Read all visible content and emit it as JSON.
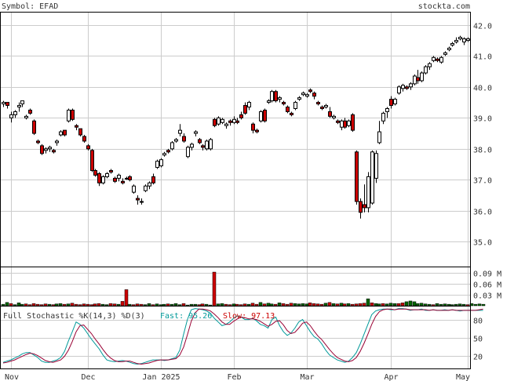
{
  "header": {
    "symbol_label": "Symbol: EFAD",
    "site": "stockta.com"
  },
  "indicator": {
    "label": "Full Stochastic %K(14,3) %D(3)",
    "fast_label": "Fast: 95.26",
    "slow_label": "Slow: 97.13"
  },
  "colors": {
    "up_fill": "#ffffff",
    "down_fill": "#cc0000",
    "up_volume": "#006600",
    "down_volume": "#cc0000",
    "k_line": "#009999",
    "d_line": "#990033",
    "accent_text": "#009999",
    "slow_text": "#cc0000"
  },
  "chart_data": [
    {
      "type": "candlestick",
      "ylim": [
        34.2,
        42.4
      ],
      "y_ticks": [
        "42.0",
        "41.0",
        "40.0",
        "39.0",
        "38.0",
        "37.0",
        "36.0",
        "35.0"
      ],
      "x_labels": [
        "Nov",
        "Dec",
        "Jan 2025",
        "Feb",
        "Mar",
        "Apr",
        "May"
      ],
      "x_label_index": [
        2,
        22,
        41,
        60,
        79,
        101,
        121
      ],
      "ohlc": [
        [
          39.45,
          39.55,
          39.35,
          39.5
        ],
        [
          39.5,
          39.5,
          39.3,
          39.4
        ],
        [
          39.0,
          39.2,
          38.85,
          39.1
        ],
        [
          39.1,
          39.25,
          39.0,
          39.2
        ],
        [
          39.35,
          39.5,
          39.2,
          39.4
        ],
        [
          39.45,
          39.55,
          39.35,
          39.55
        ],
        [
          39.0,
          39.1,
          38.95,
          39.05
        ],
        [
          39.25,
          39.3,
          39.1,
          39.15
        ],
        [
          38.9,
          38.95,
          38.45,
          38.5
        ],
        [
          38.25,
          38.3,
          38.15,
          38.2
        ],
        [
          38.1,
          38.15,
          37.8,
          37.85
        ],
        [
          37.95,
          38.05,
          37.85,
          38.0
        ],
        [
          38.0,
          38.1,
          37.9,
          38.05
        ],
        [
          37.95,
          38.0,
          37.85,
          37.9
        ],
        [
          38.2,
          38.3,
          38.1,
          38.25
        ],
        [
          38.45,
          38.6,
          38.4,
          38.55
        ],
        [
          38.6,
          38.6,
          38.4,
          38.45
        ],
        [
          38.9,
          39.3,
          38.85,
          39.25
        ],
        [
          39.25,
          39.3,
          38.9,
          38.95
        ],
        [
          38.75,
          38.8,
          38.6,
          38.7
        ],
        [
          38.65,
          38.65,
          38.4,
          38.45
        ],
        [
          38.4,
          38.45,
          38.2,
          38.25
        ],
        [
          38.1,
          38.15,
          37.95,
          38.0
        ],
        [
          37.95,
          38.0,
          37.25,
          37.3
        ],
        [
          37.3,
          37.35,
          37.1,
          37.15
        ],
        [
          37.2,
          37.25,
          36.8,
          36.9
        ],
        [
          36.9,
          37.15,
          36.85,
          37.1
        ],
        [
          37.1,
          37.25,
          37.05,
          37.2
        ],
        [
          37.3,
          37.35,
          37.2,
          37.25
        ],
        [
          37.05,
          37.1,
          36.9,
          36.95
        ],
        [
          37.05,
          37.2,
          36.95,
          37.15
        ],
        [
          36.95,
          37.05,
          36.85,
          36.9
        ],
        [
          37.05,
          37.1,
          37.0,
          37.05
        ],
        [
          37.1,
          37.15,
          36.95,
          37.0
        ],
        [
          36.6,
          36.85,
          36.55,
          36.8
        ],
        [
          36.4,
          36.5,
          36.2,
          36.35
        ],
        [
          36.3,
          36.4,
          36.2,
          36.3
        ],
        [
          36.65,
          36.85,
          36.6,
          36.8
        ],
        [
          36.8,
          36.95,
          36.7,
          36.9
        ],
        [
          37.1,
          37.2,
          36.85,
          36.9
        ],
        [
          37.4,
          37.65,
          37.35,
          37.6
        ],
        [
          37.45,
          37.7,
          37.4,
          37.65
        ],
        [
          37.8,
          37.9,
          37.75,
          37.85
        ],
        [
          37.95,
          38.0,
          37.85,
          37.9
        ],
        [
          38.0,
          38.25,
          37.95,
          38.2
        ],
        [
          38.25,
          38.35,
          38.2,
          38.3
        ],
        [
          38.5,
          38.8,
          38.4,
          38.6
        ],
        [
          38.4,
          38.5,
          38.2,
          38.25
        ],
        [
          37.75,
          38.1,
          37.7,
          38.05
        ],
        [
          38.05,
          38.2,
          37.95,
          38.15
        ],
        [
          38.5,
          38.6,
          38.4,
          38.55
        ],
        [
          38.3,
          38.35,
          38.15,
          38.2
        ],
        [
          38.1,
          38.15,
          37.95,
          38.05
        ],
        [
          38.0,
          38.3,
          37.95,
          38.25
        ],
        [
          38.0,
          38.35,
          37.95,
          38.3
        ],
        [
          38.95,
          39.0,
          38.7,
          38.75
        ],
        [
          38.8,
          39.05,
          38.75,
          39.0
        ],
        [
          38.85,
          39.0,
          38.8,
          38.95
        ],
        [
          38.75,
          38.85,
          38.65,
          38.8
        ],
        [
          38.9,
          38.95,
          38.75,
          38.85
        ],
        [
          38.85,
          39.05,
          38.8,
          38.95
        ],
        [
          38.9,
          39.0,
          38.8,
          38.85
        ],
        [
          39.1,
          39.2,
          38.95,
          39.0
        ],
        [
          39.4,
          39.5,
          39.1,
          39.15
        ],
        [
          39.35,
          39.55,
          39.25,
          39.5
        ],
        [
          38.8,
          38.85,
          38.5,
          38.6
        ],
        [
          38.6,
          38.65,
          38.5,
          38.55
        ],
        [
          38.9,
          39.25,
          38.85,
          39.2
        ],
        [
          39.25,
          39.3,
          38.85,
          38.9
        ],
        [
          39.5,
          39.6,
          39.45,
          39.55
        ],
        [
          39.55,
          39.9,
          39.5,
          39.85
        ],
        [
          39.85,
          39.9,
          39.5,
          39.55
        ],
        [
          39.6,
          39.7,
          39.5,
          39.65
        ],
        [
          39.5,
          39.55,
          39.4,
          39.45
        ],
        [
          39.35,
          39.4,
          39.15,
          39.2
        ],
        [
          39.15,
          39.2,
          39.05,
          39.1
        ],
        [
          39.3,
          39.55,
          39.25,
          39.5
        ],
        [
          39.6,
          39.7,
          39.55,
          39.65
        ],
        [
          39.75,
          39.85,
          39.7,
          39.8
        ],
        [
          39.7,
          39.8,
          39.65,
          39.75
        ],
        [
          39.9,
          39.95,
          39.8,
          39.85
        ],
        [
          39.8,
          39.85,
          39.6,
          39.7
        ],
        [
          39.5,
          39.55,
          39.4,
          39.45
        ],
        [
          39.35,
          39.4,
          39.25,
          39.3
        ],
        [
          39.35,
          39.45,
          39.3,
          39.4
        ],
        [
          39.2,
          39.35,
          39.0,
          39.05
        ],
        [
          39.0,
          39.1,
          38.95,
          39.05
        ],
        [
          38.9,
          38.95,
          38.8,
          38.85
        ],
        [
          38.7,
          38.95,
          38.6,
          38.9
        ],
        [
          38.9,
          39.0,
          38.65,
          38.7
        ],
        [
          38.75,
          38.95,
          38.7,
          38.9
        ],
        [
          39.1,
          39.15,
          38.55,
          38.6
        ],
        [
          37.9,
          37.95,
          36.2,
          36.3
        ],
        [
          36.3,
          36.4,
          35.75,
          35.95
        ],
        [
          36.2,
          36.85,
          35.95,
          36.1
        ],
        [
          36.1,
          37.25,
          35.95,
          37.1
        ],
        [
          36.25,
          37.95,
          36.2,
          37.9
        ],
        [
          37.05,
          37.95,
          36.9,
          37.85
        ],
        [
          38.2,
          38.9,
          38.15,
          38.55
        ],
        [
          38.9,
          39.2,
          38.8,
          39.15
        ],
        [
          39.2,
          39.35,
          39.0,
          39.3
        ],
        [
          39.6,
          39.7,
          39.3,
          39.4
        ],
        [
          39.45,
          39.65,
          39.4,
          39.6
        ],
        [
          39.8,
          40.05,
          39.75,
          40.0
        ],
        [
          39.95,
          40.1,
          39.85,
          40.05
        ],
        [
          40.0,
          40.05,
          39.9,
          39.95
        ],
        [
          40.0,
          40.15,
          39.9,
          40.1
        ],
        [
          40.1,
          40.4,
          40.05,
          40.35
        ],
        [
          40.3,
          40.55,
          40.1,
          40.2
        ],
        [
          40.2,
          40.5,
          40.15,
          40.45
        ],
        [
          40.45,
          40.7,
          40.4,
          40.65
        ],
        [
          40.65,
          40.8,
          40.55,
          40.75
        ],
        [
          40.85,
          41.0,
          40.8,
          40.95
        ],
        [
          40.9,
          40.95,
          40.8,
          40.85
        ],
        [
          40.8,
          41.0,
          40.75,
          40.95
        ],
        [
          41.05,
          41.15,
          41.0,
          41.1
        ],
        [
          41.2,
          41.3,
          41.15,
          41.25
        ],
        [
          41.35,
          41.45,
          41.3,
          41.4
        ],
        [
          41.45,
          41.6,
          41.4,
          41.5
        ],
        [
          41.55,
          41.65,
          41.5,
          41.6
        ],
        [
          41.45,
          41.6,
          41.35,
          41.55
        ],
        [
          41.5,
          41.6,
          41.45,
          41.55
        ]
      ]
    },
    {
      "type": "bar",
      "name": "volume",
      "ylim": [
        0,
        0.105
      ],
      "y_ticks": [
        "0.09 M",
        "0.06 M",
        "0.03 M"
      ],
      "values": [
        0.004,
        0.009,
        0.006,
        0.003,
        0.008,
        0.004,
        0.005,
        0.003,
        0.006,
        0.004,
        0.003,
        0.005,
        0.004,
        0.003,
        0.005,
        0.006,
        0.004,
        0.005,
        0.007,
        0.004,
        0.003,
        0.005,
        0.004,
        0.003,
        0.005,
        0.006,
        0.004,
        0.003,
        0.006,
        0.005,
        0.004,
        0.012,
        0.044,
        0.004,
        0.003,
        0.005,
        0.004,
        0.003,
        0.006,
        0.003,
        0.005,
        0.003,
        0.004,
        0.005,
        0.004,
        0.006,
        0.003,
        0.006,
        0.002,
        0.004,
        0.004,
        0.003,
        0.005,
        0.004,
        0.002,
        0.092,
        0.005,
        0.006,
        0.004,
        0.003,
        0.005,
        0.004,
        0.003,
        0.005,
        0.004,
        0.007,
        0.004,
        0.009,
        0.005,
        0.007,
        0.005,
        0.004,
        0.008,
        0.006,
        0.004,
        0.007,
        0.006,
        0.005,
        0.006,
        0.005,
        0.008,
        0.006,
        0.005,
        0.004,
        0.007,
        0.009,
        0.006,
        0.005,
        0.007,
        0.005,
        0.006,
        0.004,
        0.005,
        0.006,
        0.007,
        0.019,
        0.008,
        0.006,
        0.005,
        0.006,
        0.005,
        0.007,
        0.006,
        0.006,
        0.008,
        0.011,
        0.013,
        0.011,
        0.006,
        0.007,
        0.005,
        0.004,
        0.003,
        0.006,
        0.004,
        0.005,
        0.004,
        0.003,
        0.004,
        0.005,
        0.004,
        0.003,
        0.006,
        0.004,
        0.005,
        0.004
      ],
      "dir": [
        1,
        1,
        0,
        1,
        1,
        1,
        0,
        0,
        0,
        0,
        0,
        0,
        1,
        0,
        1,
        1,
        0,
        1,
        0,
        0,
        0,
        0,
        0,
        0,
        0,
        0,
        1,
        1,
        0,
        0,
        1,
        0,
        0,
        1,
        0,
        0,
        0,
        1,
        1,
        0,
        1,
        1,
        1,
        0,
        1,
        1,
        1,
        0,
        1,
        1,
        1,
        0,
        0,
        1,
        1,
        0,
        1,
        1,
        0,
        0,
        1,
        0,
        0,
        0,
        1,
        0,
        0,
        1,
        0,
        1,
        1,
        0,
        1,
        0,
        0,
        0,
        1,
        1,
        1,
        1,
        0,
        0,
        0,
        0,
        1,
        0,
        1,
        0,
        1,
        0,
        1,
        0,
        0,
        0,
        0,
        1,
        0,
        1,
        1,
        0,
        1,
        1,
        1,
        0,
        0,
        1,
        1,
        1,
        1,
        1,
        1,
        1,
        0,
        1,
        1,
        1,
        1,
        1,
        1,
        1,
        1,
        0,
        1,
        1,
        1,
        1
      ]
    },
    {
      "type": "line",
      "name": "stochastic",
      "ylim": [
        0,
        100
      ],
      "y_ticks": [
        "80",
        "50",
        "20"
      ],
      "y_tick_values": [
        80,
        50,
        20
      ],
      "series": [
        {
          "values": [
            10,
            12,
            14,
            17,
            20,
            24,
            26,
            26,
            22,
            18,
            12,
            10,
            10,
            12,
            14,
            18,
            28,
            45,
            60,
            76,
            72,
            66,
            57,
            48,
            40,
            32,
            22,
            14,
            12,
            11,
            12,
            13,
            12,
            10,
            8,
            7,
            8,
            10,
            12,
            14,
            14,
            14,
            13,
            14,
            16,
            18,
            30,
            56,
            80,
            96,
            98,
            97,
            96,
            94,
            90,
            82,
            76,
            70,
            72,
            76,
            82,
            86,
            84,
            80,
            80,
            82,
            78,
            72,
            70,
            66,
            80,
            84,
            70,
            60,
            54,
            58,
            66,
            76,
            80,
            70,
            60,
            52,
            48,
            40,
            30,
            22,
            18,
            14,
            12,
            10,
            12,
            18,
            26,
            40,
            56,
            72,
            88,
            94,
            96,
            97,
            97,
            96,
            96,
            98,
            98,
            97,
            95,
            96,
            96,
            97,
            95,
            95,
            96,
            95,
            95,
            96,
            95,
            96,
            95,
            94,
            95,
            95,
            95,
            95,
            95,
            95
          ]
        },
        {
          "values": [
            9,
            10,
            12,
            14,
            17,
            20,
            23,
            25,
            24,
            21,
            17,
            13,
            11,
            10,
            12,
            14,
            20,
            30,
            44,
            60,
            70,
            71,
            64,
            57,
            48,
            40,
            31,
            23,
            17,
            13,
            11,
            11,
            12,
            12,
            10,
            8,
            7,
            8,
            9,
            11,
            13,
            14,
            14,
            14,
            15,
            16,
            22,
            35,
            55,
            77,
            91,
            97,
            97,
            96,
            94,
            89,
            83,
            76,
            72,
            72,
            77,
            81,
            84,
            83,
            81,
            81,
            80,
            77,
            73,
            69,
            72,
            77,
            78,
            71,
            62,
            57,
            59,
            66,
            74,
            76,
            70,
            61,
            53,
            47,
            39,
            31,
            24,
            18,
            15,
            12,
            11,
            13,
            18,
            28,
            41,
            56,
            72,
            85,
            93,
            96,
            97,
            97,
            96,
            97,
            97,
            97,
            96,
            96,
            96,
            96,
            96,
            95,
            96,
            95,
            95,
            95,
            95,
            96,
            95,
            95,
            95,
            95,
            95,
            95,
            96,
            97
          ]
        }
      ]
    }
  ]
}
